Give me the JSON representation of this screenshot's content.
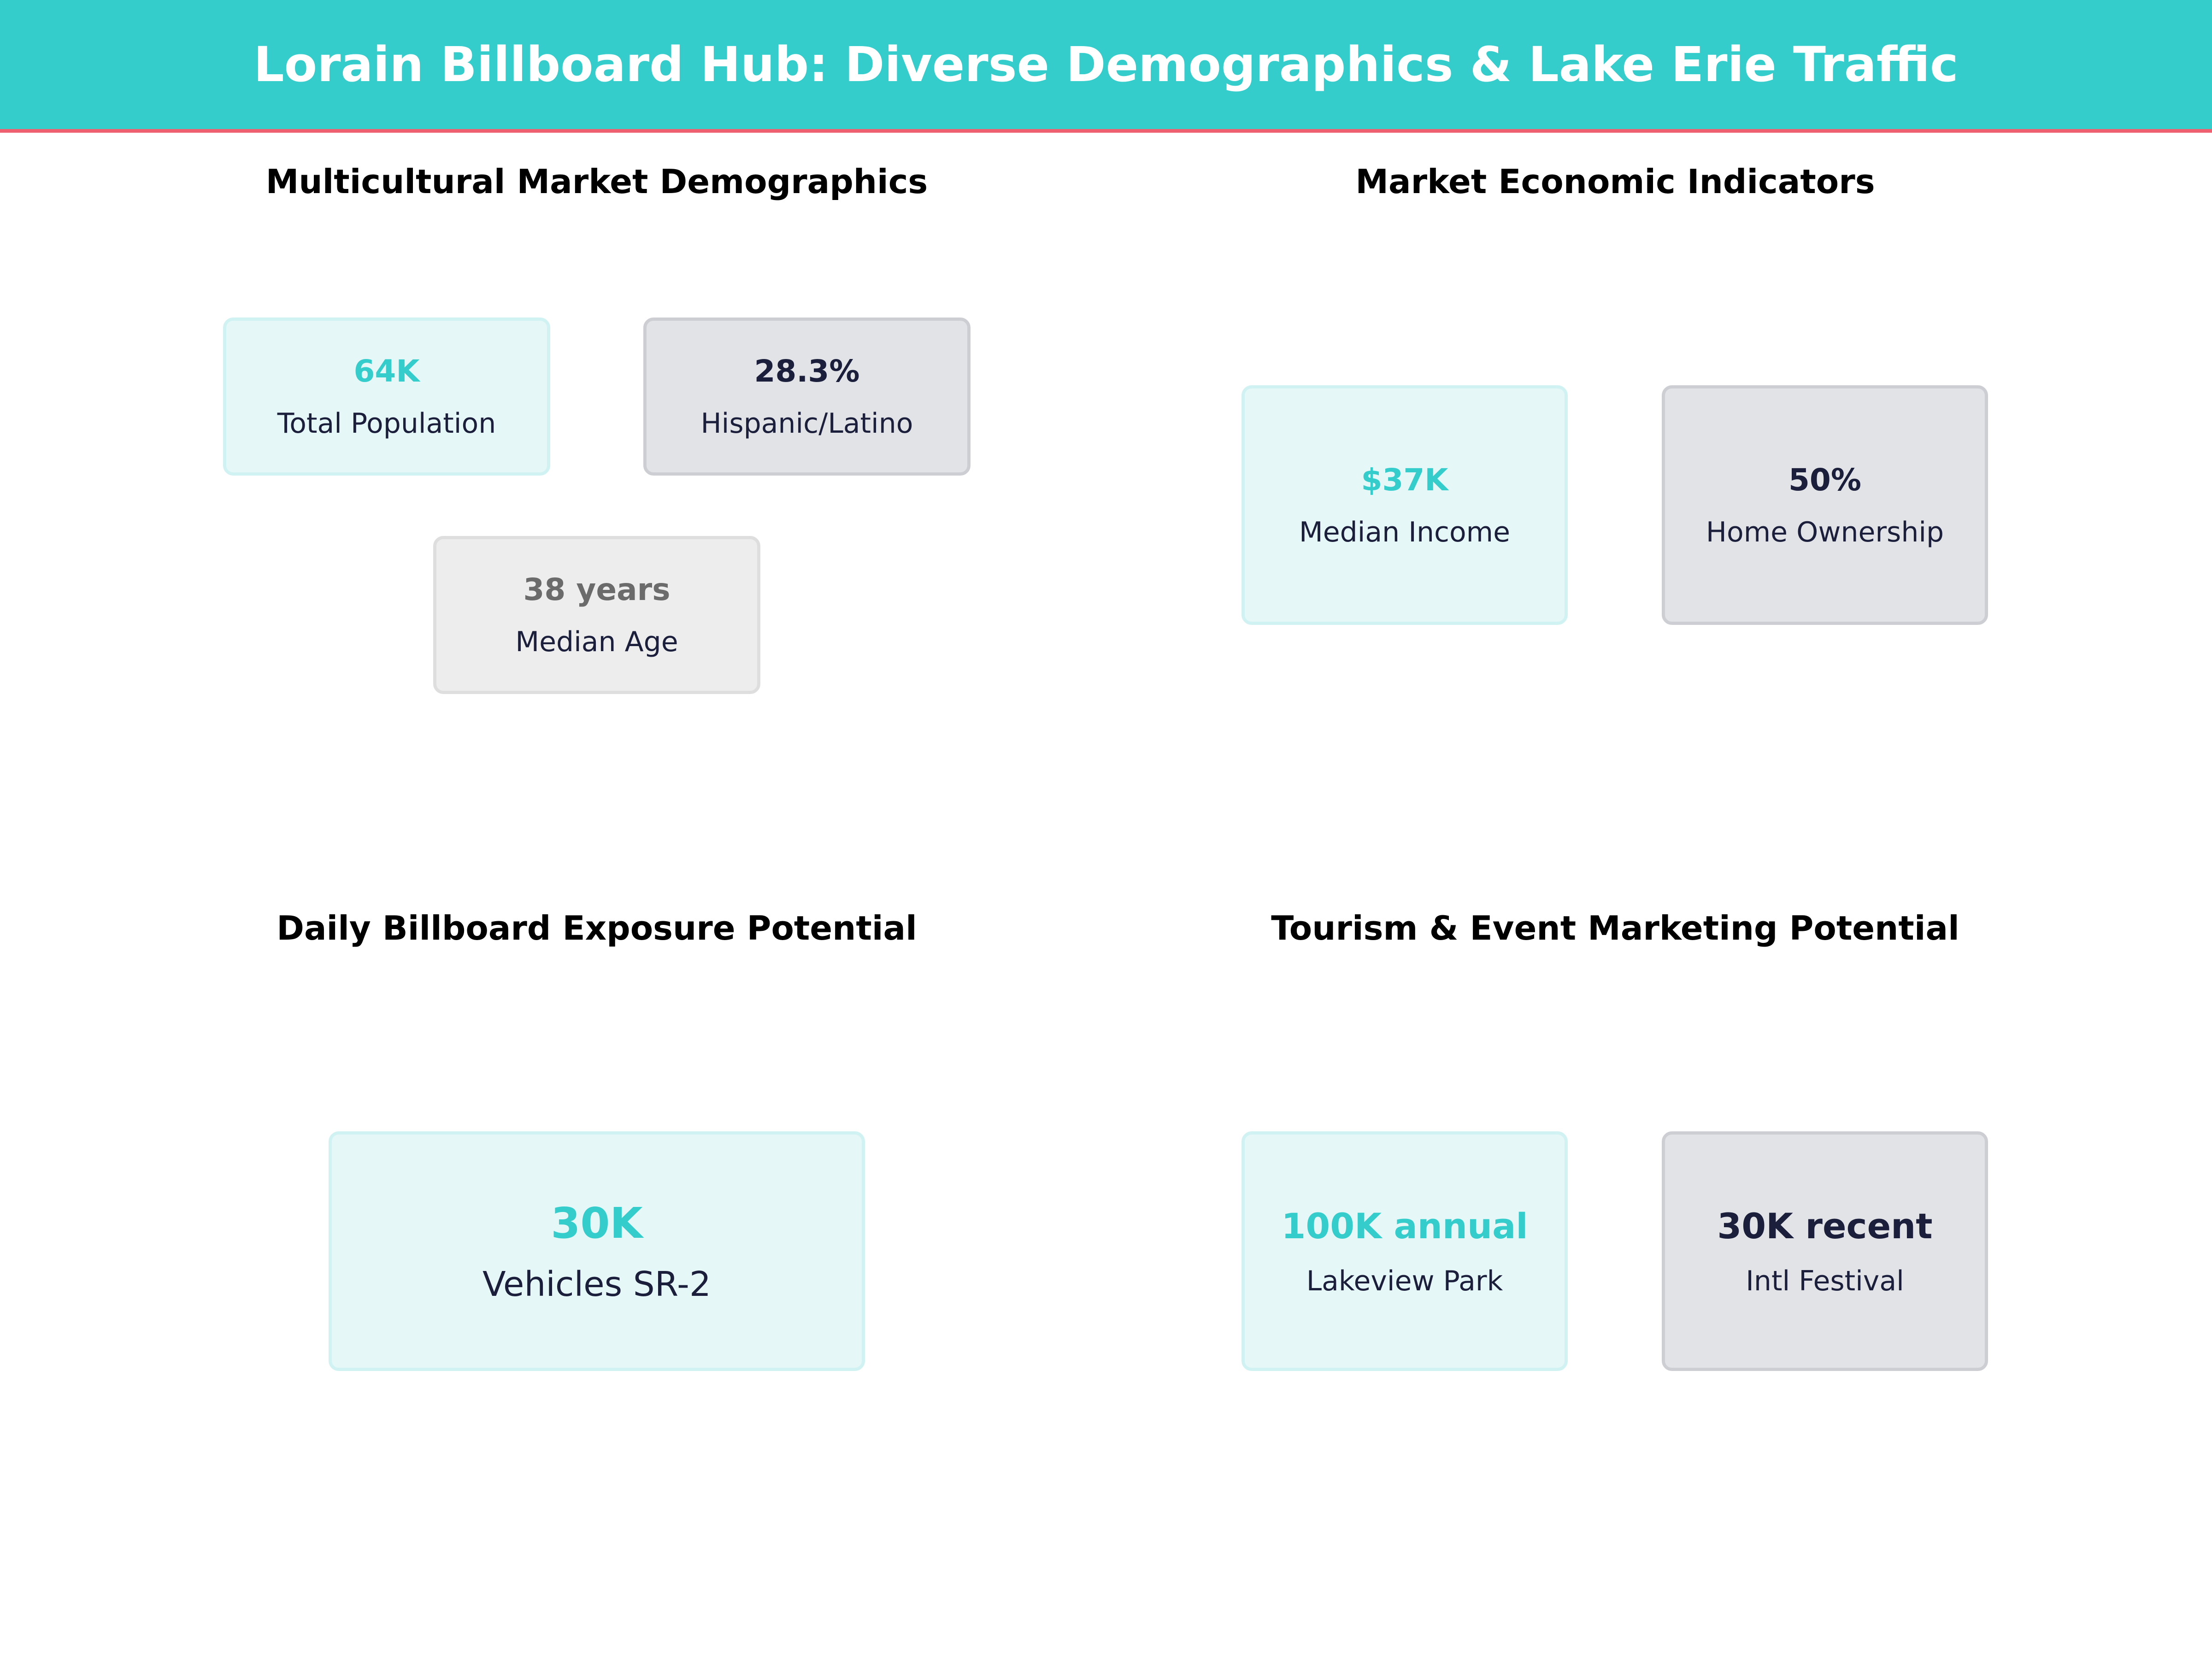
{
  "title": "Lorain Billboard Hub: Diverse Demographics & Lake Erie Traffic",
  "colors": {
    "accent": "#35CCCC",
    "divider": "#EE6070",
    "dark_text": "#1B1F3B",
    "muted_text": "#6B6B6B"
  },
  "sections": [
    {
      "title": "Multicultural Market Demographics",
      "cards": [
        {
          "value": "64K",
          "label": "Total Population"
        },
        {
          "value": "28.3%",
          "label": "Hispanic/Latino"
        },
        {
          "value": "38 years",
          "label": "Median Age"
        }
      ]
    },
    {
      "title": "Market Economic Indicators",
      "cards": [
        {
          "value": "$37K",
          "label": "Median Income"
        },
        {
          "value": "50%",
          "label": "Home Ownership"
        }
      ]
    },
    {
      "title": "Daily Billboard Exposure Potential",
      "cards": [
        {
          "value": "30K",
          "label": "Vehicles SR-2"
        }
      ]
    },
    {
      "title": "Tourism & Event Marketing Potential",
      "cards": [
        {
          "value": "100K annual",
          "label": "Lakeview Park"
        },
        {
          "value": "30K recent",
          "label": "Intl Festival"
        }
      ]
    }
  ]
}
